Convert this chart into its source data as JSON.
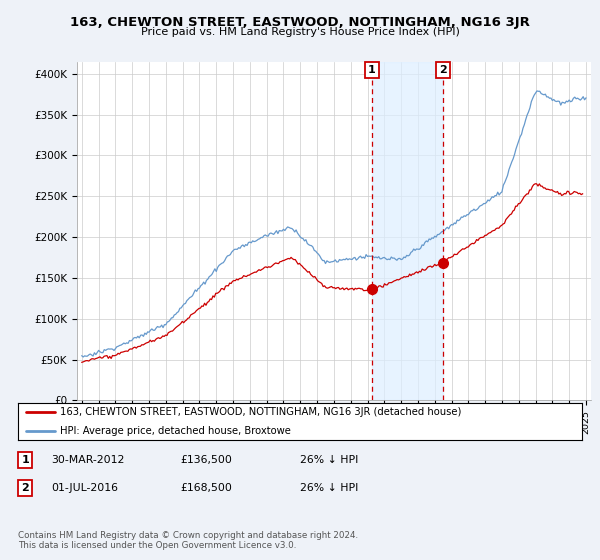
{
  "title": "163, CHEWTON STREET, EASTWOOD, NOTTINGHAM, NG16 3JR",
  "subtitle": "Price paid vs. HM Land Registry's House Price Index (HPI)",
  "ylabel_ticks": [
    "£0",
    "£50K",
    "£100K",
    "£150K",
    "£200K",
    "£250K",
    "£300K",
    "£350K",
    "£400K"
  ],
  "ytick_values": [
    0,
    50000,
    100000,
    150000,
    200000,
    250000,
    300000,
    350000,
    400000
  ],
  "ylim": [
    0,
    415000
  ],
  "xlim_start": 1994.7,
  "xlim_end": 2025.3,
  "background_color": "#eef2f8",
  "plot_bg_color": "#ffffff",
  "hpi_color": "#6699cc",
  "price_color": "#cc0000",
  "grid_color": "#cccccc",
  "shade_color": "#ddeeff",
  "marker1_date": 2012.25,
  "marker1_price": 136500,
  "marker2_date": 2016.5,
  "marker2_price": 168500,
  "legend_text1": "163, CHEWTON STREET, EASTWOOD, NOTTINGHAM, NG16 3JR (detached house)",
  "legend_text2": "HPI: Average price, detached house, Broxtowe",
  "table_row1": [
    "1",
    "30-MAR-2012",
    "£136,500",
    "26% ↓ HPI"
  ],
  "table_row2": [
    "2",
    "01-JUL-2016",
    "£168,500",
    "26% ↓ HPI"
  ],
  "footer": "Contains HM Land Registry data © Crown copyright and database right 2024.\nThis data is licensed under the Open Government Licence v3.0."
}
